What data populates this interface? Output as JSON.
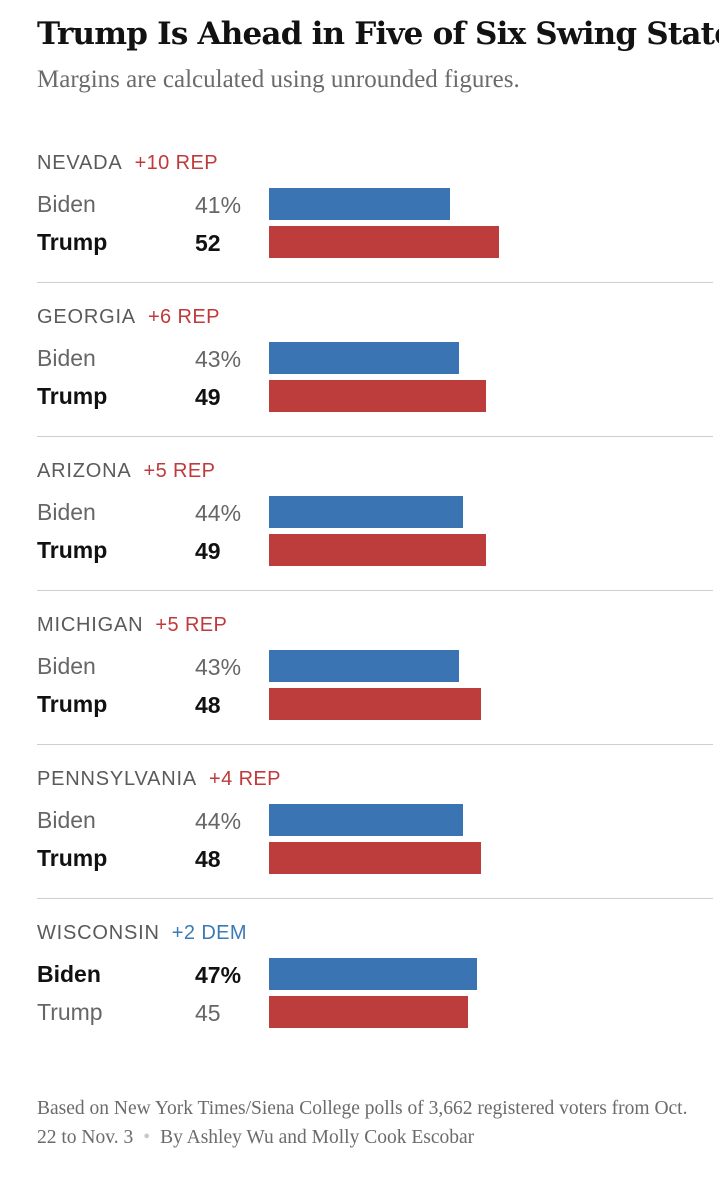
{
  "title": "Trump Is Ahead in Five of Six Swing States",
  "subtitle": "Margins are calculated using unrounded figures.",
  "colors": {
    "biden": "#3a74b2",
    "trump": "#bd3c3c",
    "rep_text": "#c0393b",
    "dem_text": "#3a7ab5"
  },
  "chart_data": {
    "type": "bar",
    "title": "Trump Is Ahead in Five of Six Swing States",
    "subtitle": "Margins are calculated using unrounded figures.",
    "categories": [
      "NEVADA",
      "GEORGIA",
      "ARIZONA",
      "MICHIGAN",
      "PENNSYLVANIA",
      "WISCONSIN"
    ],
    "series": [
      {
        "name": "Biden",
        "values": [
          41,
          43,
          44,
          43,
          44,
          47
        ]
      },
      {
        "name": "Trump",
        "values": [
          52,
          49,
          49,
          48,
          48,
          45
        ]
      }
    ],
    "margins": [
      "+10 REP",
      "+6 REP",
      "+5 REP",
      "+5 REP",
      "+4 REP",
      "+2 DEM"
    ],
    "ylim": [
      0,
      100
    ],
    "grid": false
  },
  "states": [
    {
      "name": "NEVADA",
      "margin": "+10 REP",
      "lead": "rep",
      "rows": [
        {
          "candidate": "Biden",
          "label": "41%",
          "value": 41,
          "party": "dem",
          "winner": false
        },
        {
          "candidate": "Trump",
          "label": "52",
          "value": 52,
          "party": "rep",
          "winner": true
        }
      ]
    },
    {
      "name": "GEORGIA",
      "margin": "+6 REP",
      "lead": "rep",
      "rows": [
        {
          "candidate": "Biden",
          "label": "43%",
          "value": 43,
          "party": "dem",
          "winner": false
        },
        {
          "candidate": "Trump",
          "label": "49",
          "value": 49,
          "party": "rep",
          "winner": true
        }
      ]
    },
    {
      "name": "ARIZONA",
      "margin": "+5 REP",
      "lead": "rep",
      "rows": [
        {
          "candidate": "Biden",
          "label": "44%",
          "value": 44,
          "party": "dem",
          "winner": false
        },
        {
          "candidate": "Trump",
          "label": "49",
          "value": 49,
          "party": "rep",
          "winner": true
        }
      ]
    },
    {
      "name": "MICHIGAN",
      "margin": "+5 REP",
      "lead": "rep",
      "rows": [
        {
          "candidate": "Biden",
          "label": "43%",
          "value": 43,
          "party": "dem",
          "winner": false
        },
        {
          "candidate": "Trump",
          "label": "48",
          "value": 48,
          "party": "rep",
          "winner": true
        }
      ]
    },
    {
      "name": "PENNSYLVANIA",
      "margin": "+4 REP",
      "lead": "rep",
      "rows": [
        {
          "candidate": "Biden",
          "label": "44%",
          "value": 44,
          "party": "dem",
          "winner": false
        },
        {
          "candidate": "Trump",
          "label": "48",
          "value": 48,
          "party": "rep",
          "winner": true
        }
      ]
    },
    {
      "name": "WISCONSIN",
      "margin": "+2 DEM",
      "lead": "dem",
      "rows": [
        {
          "candidate": "Biden",
          "label": "47%",
          "value": 47,
          "party": "dem",
          "winner": true
        },
        {
          "candidate": "Trump",
          "label": "45",
          "value": 45,
          "party": "rep",
          "winner": false
        }
      ]
    }
  ],
  "footer": {
    "source": "Based on New York Times/Siena College polls of 3,662 registered voters from Oct. 22 to Nov. 3",
    "separator": "•",
    "byline": "By Ashley Wu and Molly Cook Escobar"
  }
}
